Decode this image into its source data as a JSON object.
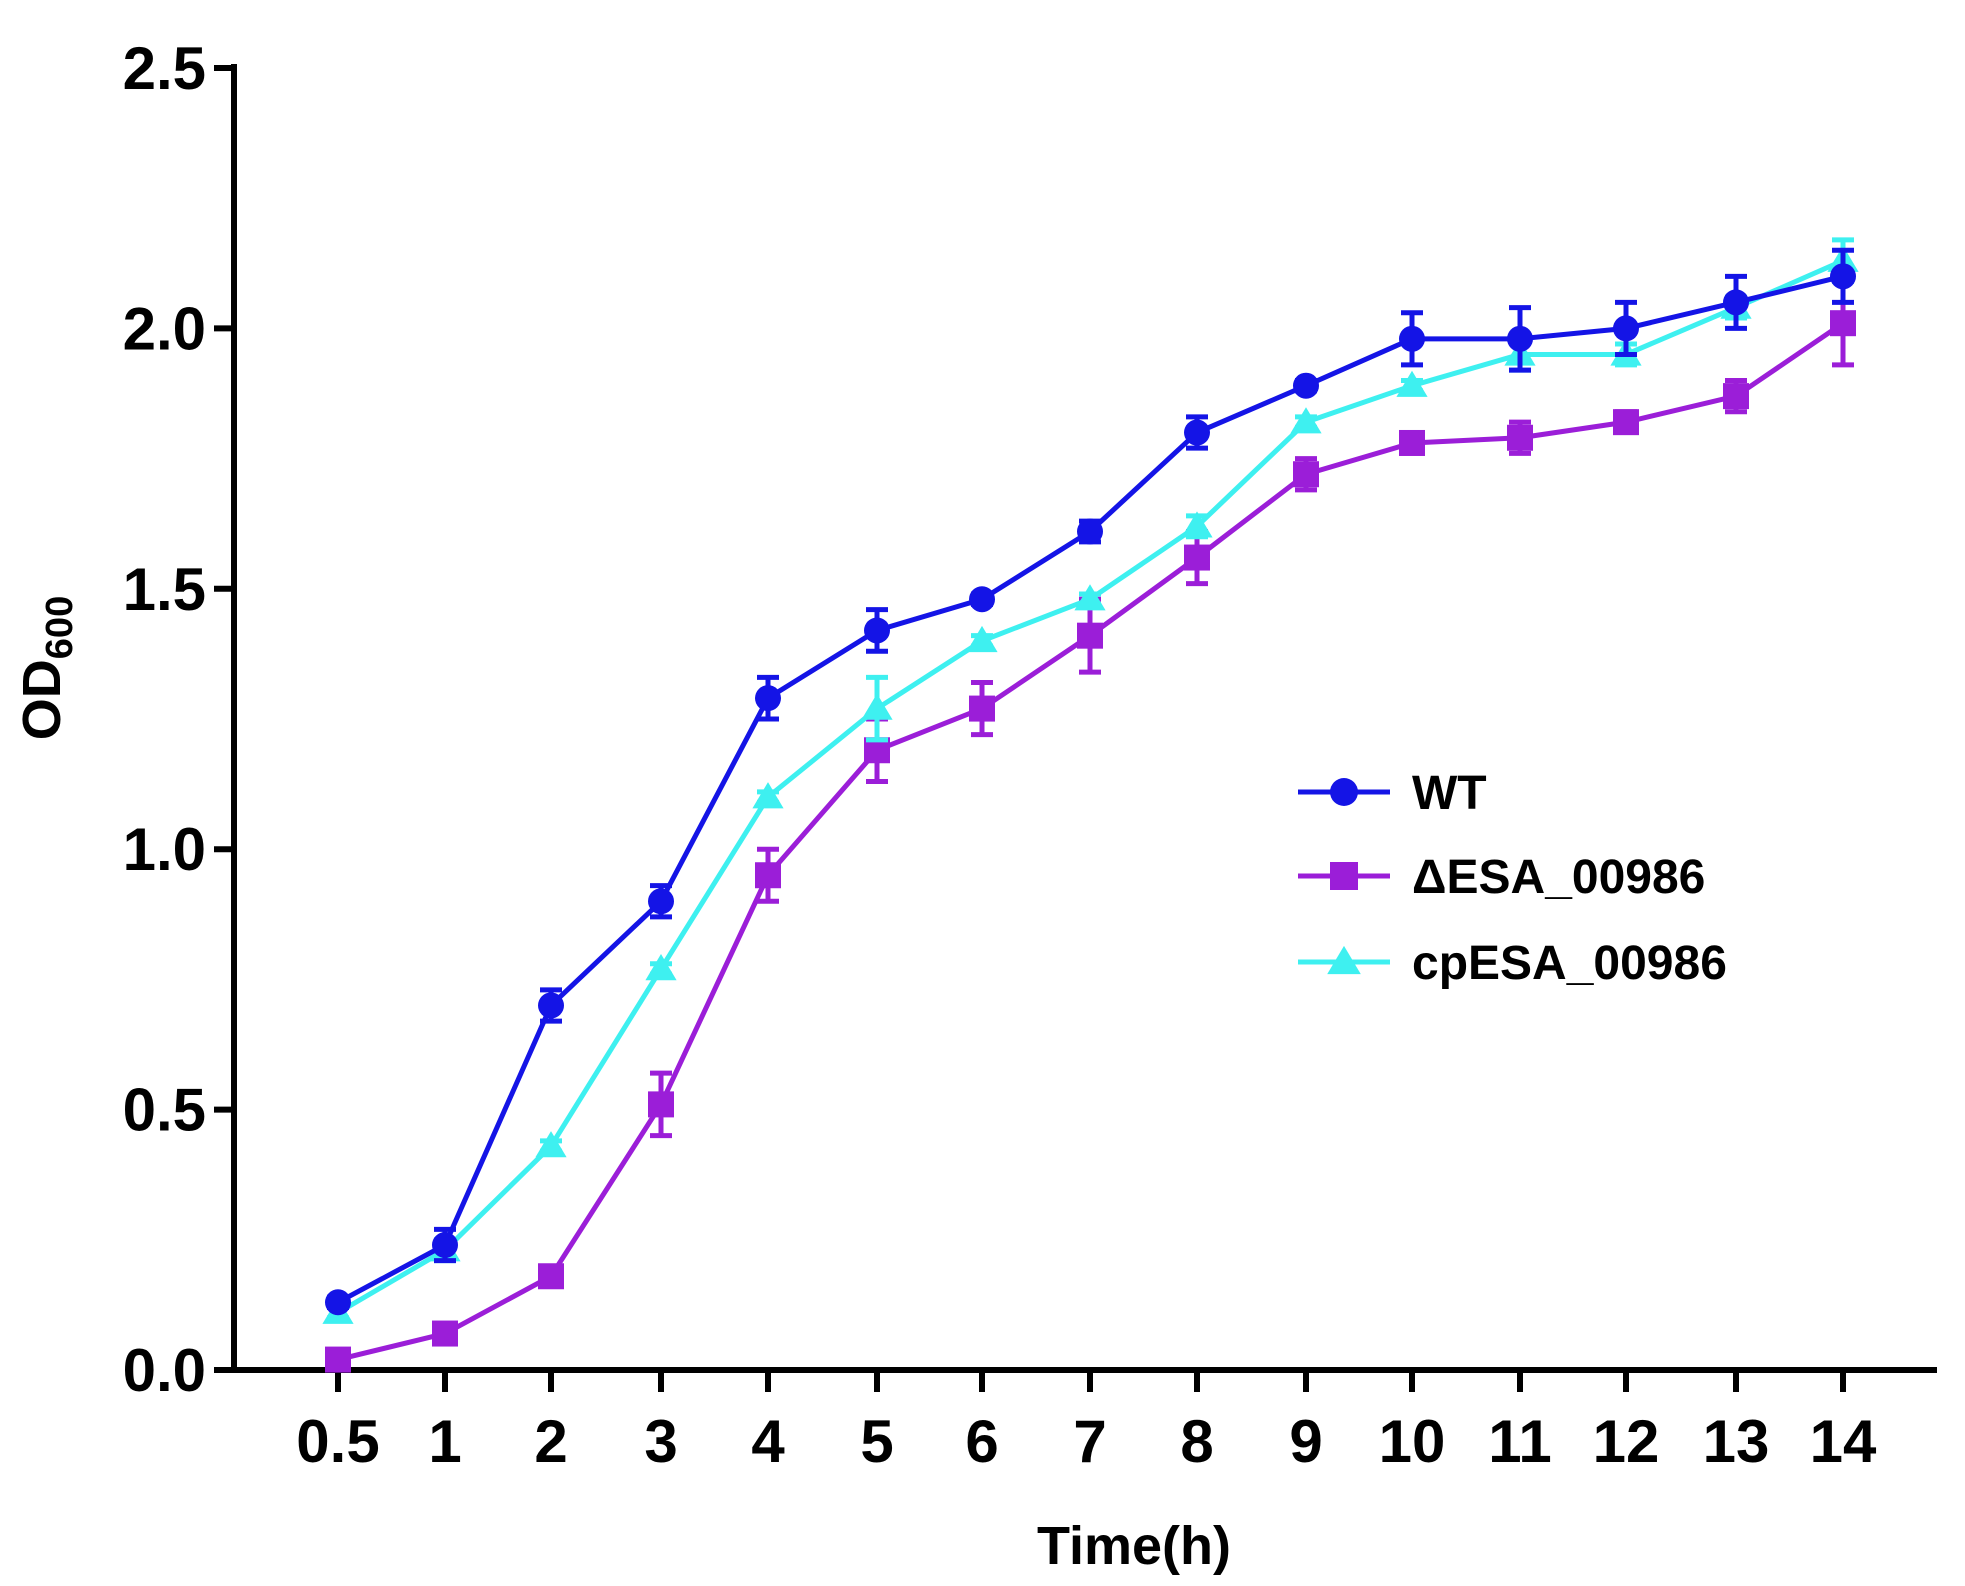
{
  "chart_data": {
    "type": "line",
    "xlabel": "Time(h)",
    "ylabel": "OD",
    "ylabel_subscript": "600",
    "ylim": [
      0,
      2.5
    ],
    "yticks": [
      "0.0",
      "0.5",
      "1.0",
      "1.5",
      "2.0",
      "2.5"
    ],
    "categories": [
      "0.5",
      "1",
      "2",
      "3",
      "4",
      "5",
      "6",
      "7",
      "8",
      "9",
      "10",
      "11",
      "12",
      "13",
      "14"
    ],
    "legend_position": "middle-right",
    "series": [
      {
        "name": "WT",
        "marker": "circle",
        "color": "#1414e6",
        "values": [
          0.13,
          0.24,
          0.7,
          0.9,
          1.29,
          1.42,
          1.48,
          1.61,
          1.8,
          1.89,
          1.98,
          1.98,
          2.0,
          2.05,
          2.1
        ],
        "errors": [
          0.01,
          0.03,
          0.03,
          0.03,
          0.04,
          0.04,
          0.01,
          0.02,
          0.03,
          0.01,
          0.05,
          0.06,
          0.05,
          0.05,
          0.05
        ]
      },
      {
        "name": "ΔESA_00986",
        "marker": "square",
        "color": "#9b1ed8",
        "values": [
          0.02,
          0.07,
          0.18,
          0.51,
          0.95,
          1.19,
          1.27,
          1.41,
          1.56,
          1.72,
          1.78,
          1.79,
          1.82,
          1.87,
          2.01
        ],
        "errors": [
          0.01,
          0.01,
          0.01,
          0.06,
          0.05,
          0.06,
          0.05,
          0.07,
          0.05,
          0.03,
          0.01,
          0.03,
          0.02,
          0.03,
          0.08
        ]
      },
      {
        "name": "cpESA_00986",
        "marker": "triangle",
        "color": "#3ef0f0",
        "values": [
          0.11,
          0.23,
          0.43,
          0.77,
          1.1,
          1.27,
          1.4,
          1.48,
          1.62,
          1.82,
          1.89,
          1.95,
          1.95,
          2.04,
          2.13
        ],
        "errors": [
          0.01,
          0.02,
          0.01,
          0.01,
          0.01,
          0.06,
          0.01,
          0.01,
          0.02,
          0.01,
          0.01,
          0.03,
          0.02,
          0.02,
          0.04
        ]
      }
    ]
  }
}
